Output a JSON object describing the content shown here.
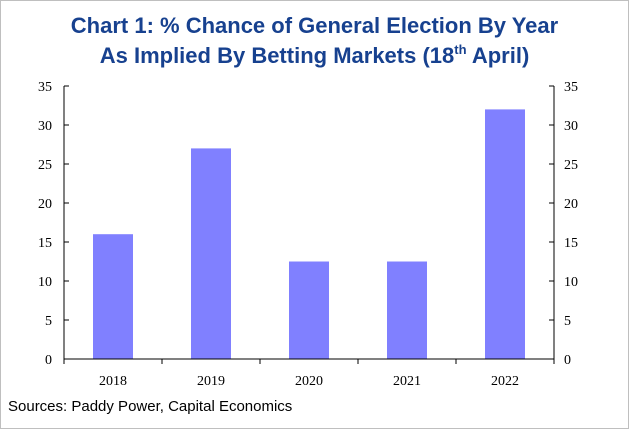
{
  "title_line1": "Chart 1: % Chance of General Election By Year",
  "title_line2_before": "As Implied By Betting Markets (18",
  "title_line2_sup": "th",
  "title_line2_after": " April)",
  "source": "Sources: Paddy Power, Capital Economics",
  "colors": {
    "bar": "#8080ff",
    "title": "#17418f",
    "axis": "#000000"
  },
  "chart_data": {
    "type": "bar",
    "title": "Chart 1: % Chance of General Election By Year As Implied By Betting Markets (18th April)",
    "categories": [
      "2018",
      "2019",
      "2020",
      "2021",
      "2022"
    ],
    "values": [
      16,
      27,
      12.5,
      12.5,
      32
    ],
    "xlabel": "",
    "ylabel": "",
    "ylim": [
      0,
      35
    ],
    "yticks": [
      0,
      5,
      10,
      15,
      20,
      25,
      30,
      35
    ],
    "secondary_y_axis": true,
    "grid": false,
    "legend": "none"
  }
}
